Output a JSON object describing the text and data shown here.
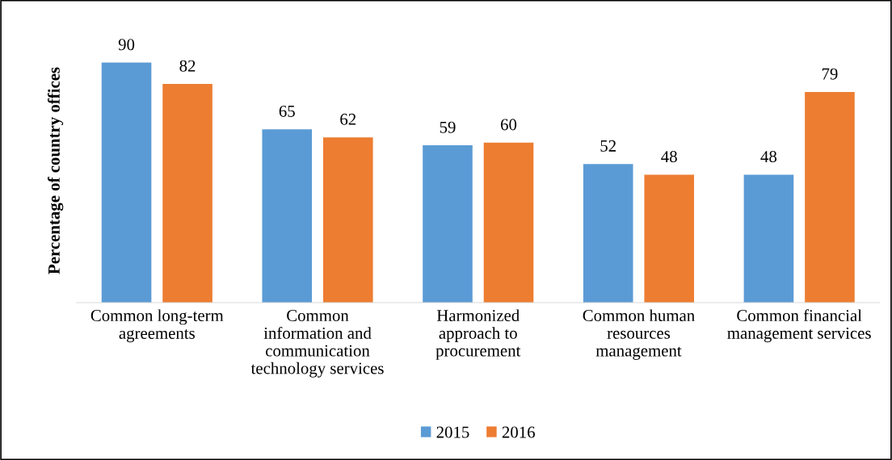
{
  "chart_data": {
    "type": "bar",
    "ylabel": "Percentage of country offices",
    "categories": [
      "Common long-term\nagreements",
      "Common\ninformation and\ncommunication\ntechnology services",
      "Harmonized\napproach to\nprocurement",
      "Common human\nresources\nmanagement",
      "Common financial\nmanagement services"
    ],
    "series": [
      {
        "name": "2015",
        "color": "#5b9bd5",
        "values": [
          90,
          65,
          59,
          52,
          48
        ]
      },
      {
        "name": "2016",
        "color": "#ed7d31",
        "values": [
          82,
          62,
          60,
          48,
          79
        ]
      }
    ],
    "data_labels": true,
    "grid": false,
    "legend": "bottom",
    "tick_labels": "x"
  }
}
